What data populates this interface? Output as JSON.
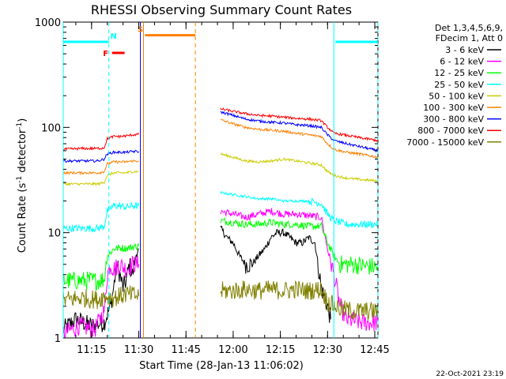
{
  "chart_data": {
    "type": "line",
    "title": "RHESSI Observing Summary Count Rates",
    "xlabel": "Start Time (28-Jan-13 11:06:02)",
    "ylabel_main": "Count Rate (s",
    "ylabel_sup1": "-1",
    "ylabel_mid": " detector",
    "ylabel_sup2": "-1",
    "ylabel_end": ")",
    "y_scale": "log",
    "xlim": [
      0,
      100
    ],
    "ylim": [
      1,
      1000
    ],
    "x_ticks": [
      {
        "x": 9,
        "label": "11:15"
      },
      {
        "x": 24,
        "label": "11:30"
      },
      {
        "x": 39,
        "label": "11:45"
      },
      {
        "x": 54,
        "label": "12:00"
      },
      {
        "x": 69,
        "label": "12:15"
      },
      {
        "x": 84,
        "label": "12:30"
      },
      {
        "x": 99,
        "label": "12:45"
      }
    ],
    "y_ticks": [
      {
        "y": 1,
        "label": "1"
      },
      {
        "y": 10,
        "label": "10"
      },
      {
        "y": 100,
        "label": "100"
      },
      {
        "y": 1000,
        "label": "1000"
      }
    ],
    "legend_header": [
      "Det 1,3,4,5,6,9,",
      "FDecim 1, Att 0"
    ],
    "legend_placement": "right",
    "series": [
      {
        "name": "3 - 6 keV",
        "color": "#000000",
        "segments": [
          [
            [
              0,
              1.2
            ],
            [
              4,
              1.5
            ],
            [
              9,
              1.3
            ],
            [
              13,
              1.4
            ],
            [
              15,
              2
            ],
            [
              16,
              3
            ],
            [
              17,
              5
            ],
            [
              18,
              4
            ],
            [
              19,
              3
            ],
            [
              20,
              3.5
            ],
            [
              21,
              5
            ],
            [
              22,
              4
            ],
            [
              23,
              6
            ],
            [
              24,
              7
            ]
          ],
          [
            [
              50,
              11
            ],
            [
              52,
              9
            ],
            [
              54,
              8
            ],
            [
              56,
              6
            ],
            [
              58,
              5
            ],
            [
              60,
              5
            ],
            [
              62,
              6
            ],
            [
              64,
              7
            ],
            [
              66,
              9
            ],
            [
              68,
              10
            ],
            [
              70,
              10
            ],
            [
              72,
              9
            ],
            [
              74,
              8
            ],
            [
              76,
              8
            ],
            [
              78,
              9
            ],
            [
              80,
              8
            ],
            [
              82,
              3
            ],
            [
              84,
              2
            ],
            [
              85,
              1.5
            ]
          ]
        ]
      },
      {
        "name": "6 - 12 keV",
        "color": "#ff00ff",
        "segments": [
          [
            [
              0,
              1.1
            ],
            [
              5,
              1.3
            ],
            [
              10,
              1.2
            ],
            [
              13,
              1.8
            ],
            [
              14,
              4
            ],
            [
              15,
              5
            ],
            [
              16,
              4.5
            ],
            [
              18,
              5
            ],
            [
              20,
              4.5
            ],
            [
              22,
              5
            ],
            [
              24,
              5
            ]
          ],
          [
            [
              50,
              16
            ],
            [
              54,
              15
            ],
            [
              58,
              14
            ],
            [
              62,
              15
            ],
            [
              66,
              16
            ],
            [
              70,
              15
            ],
            [
              74,
              15
            ],
            [
              78,
              14.5
            ],
            [
              82,
              14
            ],
            [
              84,
              7
            ],
            [
              86,
              4
            ],
            [
              88,
              2
            ],
            [
              90,
              1.5
            ],
            [
              95,
              1.4
            ],
            [
              100,
              1.4
            ]
          ]
        ]
      },
      {
        "name": "12 - 25 keV",
        "color": "#00ff00",
        "segments": [
          [
            [
              0,
              3.5
            ],
            [
              6,
              3.5
            ],
            [
              11,
              3.5
            ],
            [
              13,
              3.6
            ],
            [
              14,
              6
            ],
            [
              16,
              7
            ],
            [
              18,
              7.2
            ],
            [
              20,
              7.1
            ],
            [
              22,
              7.3
            ],
            [
              24,
              7.5
            ]
          ],
          [
            [
              50,
              13
            ],
            [
              54,
              12.5
            ],
            [
              58,
              12
            ],
            [
              62,
              12
            ],
            [
              66,
              12.5
            ],
            [
              70,
              12
            ],
            [
              74,
              12
            ],
            [
              78,
              11.5
            ],
            [
              82,
              11.5
            ],
            [
              84,
              8
            ],
            [
              86,
              6
            ],
            [
              88,
              5
            ],
            [
              92,
              5
            ],
            [
              96,
              4.8
            ],
            [
              100,
              4.7
            ]
          ]
        ]
      },
      {
        "name": "25 - 50 keV",
        "color": "#00ffff",
        "segments": [
          [
            [
              0,
              11
            ],
            [
              6,
              11
            ],
            [
              11,
              11
            ],
            [
              13,
              11.5
            ],
            [
              14,
              16
            ],
            [
              16,
              18
            ],
            [
              18,
              18
            ],
            [
              20,
              17.5
            ],
            [
              22,
              18
            ],
            [
              24,
              18
            ]
          ],
          [
            [
              50,
              24
            ],
            [
              54,
              23
            ],
            [
              58,
              22
            ],
            [
              62,
              21
            ],
            [
              66,
              21
            ],
            [
              70,
              20
            ],
            [
              74,
              20
            ],
            [
              78,
              20
            ],
            [
              82,
              19
            ],
            [
              84,
              15
            ],
            [
              86,
              13
            ],
            [
              90,
              12
            ],
            [
              94,
              12
            ],
            [
              100,
              12
            ]
          ]
        ]
      },
      {
        "name": "50 - 100 keV",
        "color": "#cccc00",
        "segments": [
          [
            [
              0,
              29
            ],
            [
              6,
              29
            ],
            [
              11,
              29
            ],
            [
              13,
              30
            ],
            [
              14,
              35
            ],
            [
              16,
              37
            ],
            [
              18,
              37
            ],
            [
              20,
              37
            ],
            [
              22,
              38
            ],
            [
              24,
              38
            ]
          ],
          [
            [
              50,
              56
            ],
            [
              54,
              52
            ],
            [
              58,
              48
            ],
            [
              62,
              47
            ],
            [
              66,
              48
            ],
            [
              70,
              50
            ],
            [
              74,
              48
            ],
            [
              78,
              46
            ],
            [
              82,
              44
            ],
            [
              84,
              38
            ],
            [
              86,
              35
            ],
            [
              90,
              33
            ],
            [
              94,
              32
            ],
            [
              100,
              31
            ]
          ]
        ]
      },
      {
        "name": "100 - 300 keV",
        "color": "#ff8000",
        "segments": [
          [
            [
              0,
              37
            ],
            [
              6,
              37
            ],
            [
              11,
              37
            ],
            [
              13,
              38
            ],
            [
              14,
              45
            ],
            [
              16,
              47
            ],
            [
              18,
              47
            ],
            [
              20,
              47
            ],
            [
              22,
              48
            ],
            [
              24,
              48
            ]
          ],
          [
            [
              50,
              118
            ],
            [
              54,
              108
            ],
            [
              58,
              100
            ],
            [
              62,
              96
            ],
            [
              66,
              94
            ],
            [
              70,
              92
            ],
            [
              74,
              88
            ],
            [
              78,
              85
            ],
            [
              82,
              82
            ],
            [
              84,
              70
            ],
            [
              86,
              62
            ],
            [
              90,
              58
            ],
            [
              94,
              56
            ],
            [
              100,
              52
            ]
          ]
        ]
      },
      {
        "name": "300 - 800 keV",
        "color": "#0000ff",
        "segments": [
          [
            [
              0,
              48
            ],
            [
              6,
              48
            ],
            [
              11,
              48
            ],
            [
              13,
              50
            ],
            [
              14,
              56
            ],
            [
              16,
              58
            ],
            [
              18,
              58
            ],
            [
              20,
              58
            ],
            [
              22,
              59
            ],
            [
              24,
              59
            ]
          ],
          [
            [
              50,
              140
            ],
            [
              54,
              130
            ],
            [
              58,
              120
            ],
            [
              62,
              115
            ],
            [
              66,
              112
            ],
            [
              70,
              110
            ],
            [
              74,
              106
            ],
            [
              78,
              104
            ],
            [
              82,
              100
            ],
            [
              84,
              85
            ],
            [
              86,
              75
            ],
            [
              90,
              70
            ],
            [
              94,
              66
            ],
            [
              100,
              60
            ]
          ]
        ]
      },
      {
        "name": "800 - 7000 keV",
        "color": "#ff0000",
        "segments": [
          [
            [
              0,
              62
            ],
            [
              6,
              63
            ],
            [
              11,
              63
            ],
            [
              13,
              64
            ],
            [
              14,
              78
            ],
            [
              16,
              82
            ],
            [
              18,
              82
            ],
            [
              20,
              83
            ],
            [
              22,
              85
            ],
            [
              24,
              86
            ]
          ],
          [
            [
              50,
              150
            ],
            [
              54,
              142
            ],
            [
              58,
              135
            ],
            [
              62,
              130
            ],
            [
              66,
              128
            ],
            [
              70,
              125
            ],
            [
              74,
              122
            ],
            [
              78,
              120
            ],
            [
              82,
              116
            ],
            [
              84,
              100
            ],
            [
              86,
              88
            ],
            [
              90,
              84
            ],
            [
              94,
              80
            ],
            [
              100,
              75
            ]
          ]
        ]
      },
      {
        "name": "7000 - 15000 keV",
        "color": "#808000",
        "segments": [
          [
            [
              0,
              2.3
            ],
            [
              6,
              2.4
            ],
            [
              11,
              2.3
            ],
            [
              13,
              2.5
            ],
            [
              16,
              2.4
            ],
            [
              20,
              2.6
            ],
            [
              24,
              2.5
            ]
          ],
          [
            [
              50,
              2.8
            ],
            [
              54,
              2.8
            ],
            [
              58,
              2.9
            ],
            [
              62,
              2.8
            ],
            [
              66,
              2.9
            ],
            [
              70,
              2.8
            ],
            [
              74,
              2.9
            ],
            [
              78,
              2.8
            ],
            [
              82,
              2.9
            ],
            [
              84,
              2.2
            ],
            [
              88,
              1.9
            ],
            [
              92,
              1.8
            ],
            [
              96,
              1.8
            ],
            [
              100,
              1.8
            ]
          ]
        ]
      }
    ],
    "annotations": [
      {
        "kind": "night",
        "letter": "N",
        "color": "#00ffff",
        "x_start": 0,
        "x_end": 14.5,
        "level": 650,
        "letter_x": 16
      },
      {
        "kind": "night",
        "letter": "",
        "color": "#00ffff",
        "x_start": 86.5,
        "x_end": 100,
        "level": 650
      },
      {
        "kind": "flare",
        "letter": "F",
        "color": "#ff0000",
        "x_start": 15.5,
        "x_end": 19.5,
        "level": 510,
        "letter_x": 13.5
      },
      {
        "kind": "saa",
        "letter": "S",
        "color": "#ff8000",
        "x_start": 26,
        "x_end": 42,
        "level": 750,
        "letter_x": 24.5
      }
    ],
    "vlines": [
      {
        "x": 14.5,
        "color": "#00ffff",
        "dashed": true
      },
      {
        "x": 24.5,
        "color": "#0000ff",
        "dashed": false
      },
      {
        "x": 25.5,
        "color": "#ff8000",
        "dashed": false
      },
      {
        "x": 42,
        "color": "#ff8000",
        "dashed": true
      },
      {
        "x": 86,
        "color": "#00ffff",
        "dashed": false
      },
      {
        "x": 100,
        "color": "#00ffff",
        "dashed": true
      },
      {
        "x": 0,
        "color": "#00ffff",
        "dashed": false
      }
    ],
    "footer_stamp": "22-Oct-2021 23:19"
  }
}
